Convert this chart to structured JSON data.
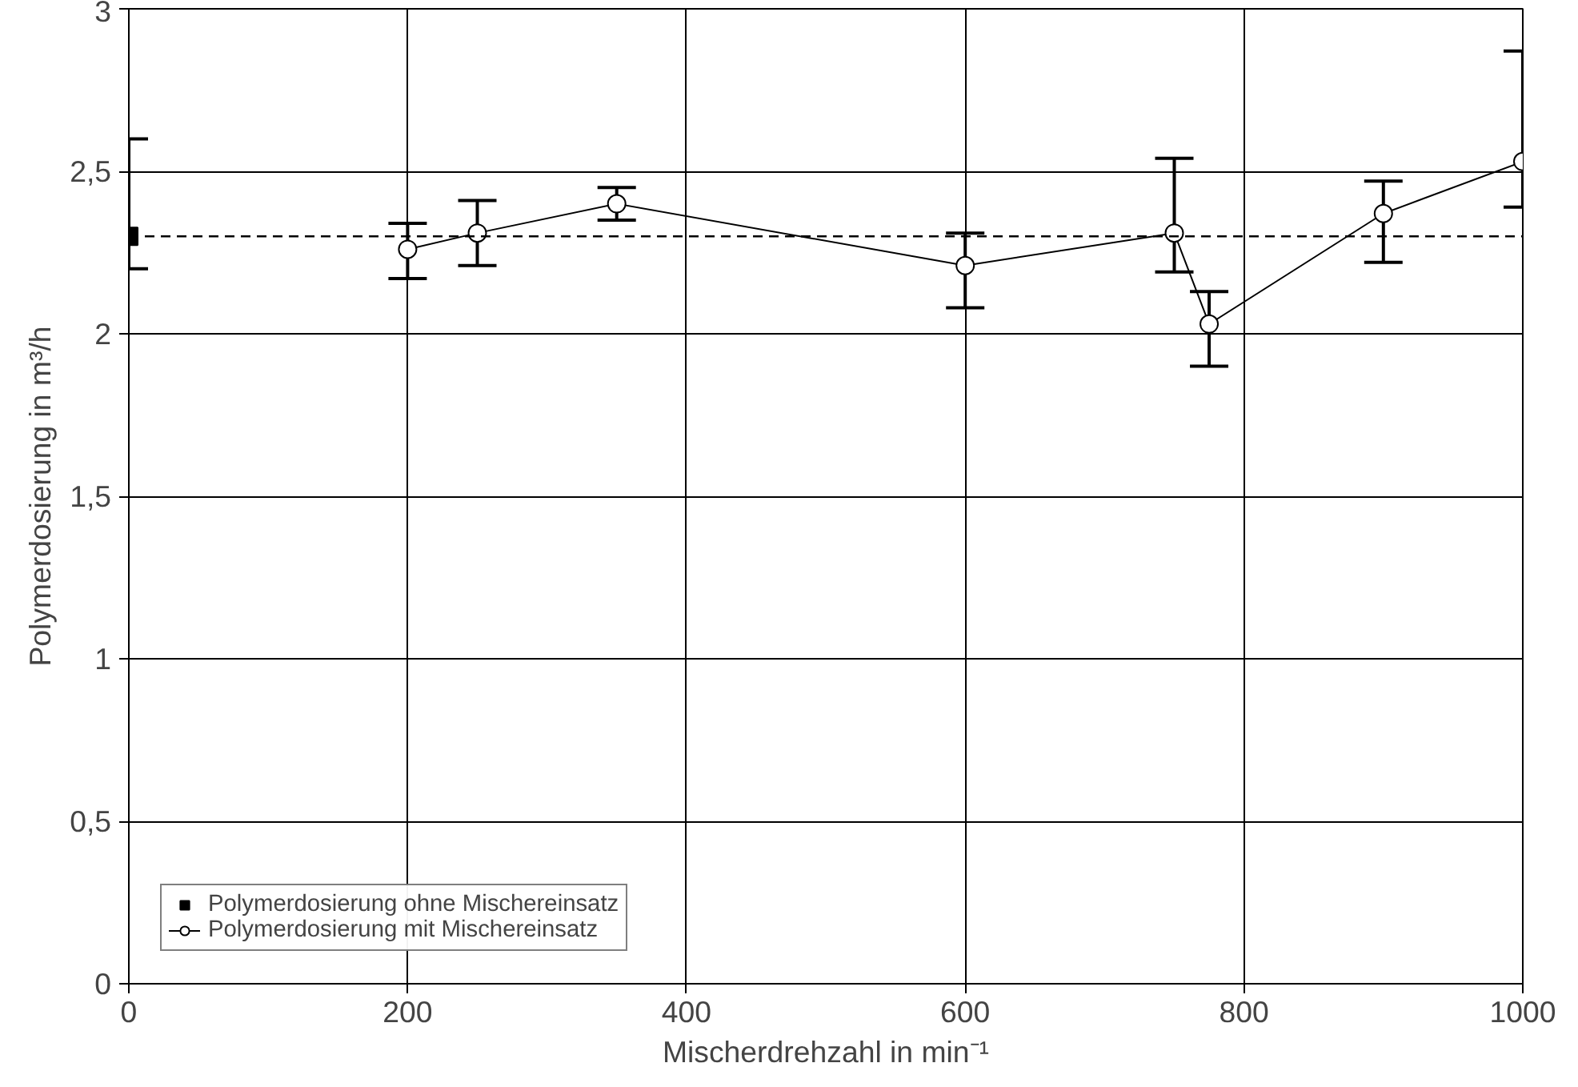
{
  "chart_data": {
    "type": "line",
    "xlabel": "Mischerdrehzahl in min⁻¹",
    "ylabel": "Polymerdosierung in m³/h",
    "xlim": [
      0,
      1000
    ],
    "xticks": [
      0,
      200,
      400,
      600,
      800,
      1000
    ],
    "ylim": [
      0,
      3
    ],
    "yticks": [
      0,
      {
        "value": 0.5,
        "label": "0,5"
      },
      1,
      {
        "value": 1.5,
        "label": "1,5"
      },
      2,
      {
        "value": 2.5,
        "label": "2,5"
      },
      3
    ],
    "grid": true,
    "legend": "bottom left",
    "series": [
      {
        "name": "Polymerdosierung ohne Mischereinsatz",
        "type": "scatter",
        "marker": "square",
        "color": "#000000",
        "x": [
          0
        ],
        "values": [
          2.3
        ],
        "errors": [
          [
            2.2,
            2.6
          ]
        ]
      },
      {
        "name": "Polymerdosierung mit Mischereinsatz",
        "marker": "circle",
        "color": "#000000",
        "x": [
          200,
          250,
          350,
          600,
          750,
          775,
          900,
          1000
        ],
        "values": [
          2.26,
          2.31,
          2.4,
          2.21,
          2.31,
          2.03,
          2.37,
          2.53
        ],
        "errors": [
          [
            2.17,
            2.34
          ],
          [
            2.21,
            2.41
          ],
          [
            2.35,
            2.45
          ],
          [
            2.08,
            2.31
          ],
          [
            2.19,
            2.54
          ],
          [
            1.9,
            2.13
          ],
          [
            2.22,
            2.47
          ],
          [
            2.39,
            2.87
          ]
        ]
      }
    ],
    "ref_lines": [
      {
        "axis": "y",
        "value": 2.3,
        "line_style": "dashed",
        "color": "#000000"
      }
    ]
  }
}
